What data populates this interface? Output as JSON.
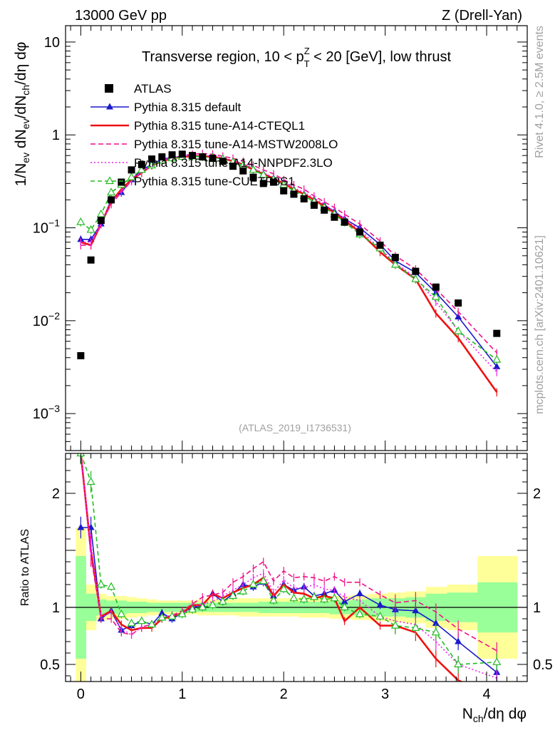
{
  "header": {
    "left": "13000 GeV pp",
    "right": "Z (Drell-Yan)",
    "side_top": "Rivet 4.1.0, ≥ 2.5M events",
    "side_bottom": "mcplots.cern.ch [arXiv:2401.10621]",
    "analysis_id": "(ATLAS_2019_I1736531)"
  },
  "colors": {
    "atlas": "#000000",
    "default": "#1a1acc",
    "cteql1": "#ee1111",
    "mstw": "#ee1188",
    "nnpdf": "#ee22ee",
    "cuetp": "#22bb22",
    "band_yellow": "#ffff99",
    "band_green": "#99ff99"
  },
  "chart_data": [
    {
      "type": "scatter",
      "scale": "log",
      "title": "Transverse region, 10 < p_T^Z < 20 [GeV], low thrust",
      "title_parts": {
        "pre": "Transverse region, 10 < p",
        "sup": "Z",
        "sub": "T",
        "post": " < 20 [GeV], low thrust"
      },
      "ylabel": "1/N_ev dN_ev/dN_ch/dη dφ",
      "ylabel_parts": [
        "1/N",
        "ev",
        " dN",
        "ev",
        "/dN",
        "ch",
        "/dη dφ"
      ],
      "xlim": [
        -0.15,
        4.4
      ],
      "ylim": [
        0.0004,
        15
      ],
      "ytick_labels": [
        {
          "v": 0.001,
          "b": "10",
          "e": "−3"
        },
        {
          "v": 0.01,
          "b": "10",
          "e": "−2"
        },
        {
          "v": 0.1,
          "b": "10",
          "e": "−1"
        },
        {
          "v": 1,
          "b": "1",
          "e": ""
        },
        {
          "v": 10,
          "b": "10",
          "e": ""
        }
      ],
      "legend": [
        {
          "key": "atlas",
          "label": "ATLAS"
        },
        {
          "key": "default",
          "label": "Pythia 8.315 default"
        },
        {
          "key": "cteql1",
          "label": "Pythia 8.315 tune-A14-CTEQL1"
        },
        {
          "key": "mstw",
          "label": "Pythia 8.315 tune-A14-MSTW2008LO"
        },
        {
          "key": "nnpdf",
          "label": "Pythia 8.315 tune-A14-NNPDF2.3LO"
        },
        {
          "key": "cuetp",
          "label": "Pythia 8.315 tune-CUETP8S1"
        }
      ],
      "x": [
        0.0,
        0.1,
        0.2,
        0.3,
        0.4,
        0.5,
        0.6,
        0.7,
        0.8,
        0.9,
        1.0,
        1.1,
        1.2,
        1.3,
        1.4,
        1.5,
        1.6,
        1.7,
        1.8,
        1.9,
        2.0,
        2.1,
        2.2,
        2.3,
        2.4,
        2.5,
        2.6,
        2.75,
        2.95,
        3.1,
        3.3,
        3.5,
        3.72,
        4.1
      ],
      "data": [
        0.0042,
        0.045,
        0.12,
        0.2,
        0.31,
        0.42,
        0.48,
        0.55,
        0.58,
        0.61,
        0.62,
        0.6,
        0.58,
        0.56,
        0.52,
        0.46,
        0.41,
        0.35,
        0.3,
        0.31,
        0.25,
        0.23,
        0.205,
        0.175,
        0.155,
        0.13,
        0.115,
        0.09,
        0.065,
        0.048,
        0.034,
        0.023,
        0.0155,
        0.0073
      ],
      "series": [
        {
          "key": "default",
          "name": "Pythia 8.315 default",
          "dash": "",
          "marker": "tri",
          "values": [
            0.075,
            0.075,
            0.11,
            0.2,
            0.24,
            0.33,
            0.42,
            0.48,
            0.55,
            0.57,
            0.59,
            0.6,
            0.59,
            0.58,
            0.56,
            0.52,
            0.48,
            0.43,
            0.38,
            0.34,
            0.3,
            0.26,
            0.23,
            0.2,
            0.175,
            0.15,
            0.125,
            0.1,
            0.066,
            0.044,
            0.033,
            0.02,
            0.011,
            0.0032
          ]
        },
        {
          "key": "cteql1",
          "name": "Pythia 8.315 tune-A14-CTEQL1",
          "dash": "",
          "marker": "none",
          "values": [
            0.07,
            0.065,
            0.11,
            0.19,
            0.26,
            0.33,
            0.39,
            0.47,
            0.52,
            0.56,
            0.58,
            0.59,
            0.59,
            0.58,
            0.56,
            0.52,
            0.48,
            0.42,
            0.38,
            0.34,
            0.3,
            0.26,
            0.23,
            0.2,
            0.17,
            0.145,
            0.12,
            0.09,
            0.055,
            0.04,
            0.028,
            0.012,
            0.0065,
            0.0017
          ]
        },
        {
          "key": "mstw",
          "name": "Pythia 8.315 tune-A14-MSTW2008LO",
          "dash": "7,4",
          "marker": "none",
          "values": [
            0.065,
            0.065,
            0.11,
            0.18,
            0.24,
            0.32,
            0.4,
            0.47,
            0.53,
            0.57,
            0.6,
            0.62,
            0.63,
            0.62,
            0.59,
            0.56,
            0.52,
            0.47,
            0.42,
            0.38,
            0.33,
            0.29,
            0.26,
            0.22,
            0.19,
            0.165,
            0.14,
            0.11,
            0.072,
            0.05,
            0.036,
            0.022,
            0.0125,
            0.0045
          ]
        },
        {
          "key": "nnpdf",
          "name": "Pythia 8.315 tune-A14-NNPDF2.3LO",
          "dash": "2,3",
          "marker": "none",
          "values": [
            0.07,
            0.07,
            0.11,
            0.19,
            0.25,
            0.32,
            0.4,
            0.47,
            0.53,
            0.57,
            0.59,
            0.6,
            0.6,
            0.59,
            0.57,
            0.53,
            0.49,
            0.44,
            0.39,
            0.35,
            0.31,
            0.27,
            0.24,
            0.21,
            0.18,
            0.15,
            0.125,
            0.095,
            0.06,
            0.042,
            0.029,
            0.016,
            0.0078,
            0.0028
          ]
        },
        {
          "key": "cuetp",
          "name": "Pythia 8.315 tune-CUETP8S1",
          "dash": "6,4",
          "marker": "otri",
          "values": [
            0.115,
            0.095,
            0.14,
            0.24,
            0.29,
            0.35,
            0.42,
            0.47,
            0.53,
            0.56,
            0.58,
            0.59,
            0.58,
            0.57,
            0.55,
            0.51,
            0.47,
            0.42,
            0.37,
            0.33,
            0.29,
            0.25,
            0.22,
            0.19,
            0.165,
            0.14,
            0.115,
            0.085,
            0.06,
            0.04,
            0.028,
            0.018,
            0.0077,
            0.0038
          ]
        }
      ]
    },
    {
      "type": "line",
      "title": "",
      "ylabel": "Ratio to ATLAS",
      "xlabel": "N_ch/dη dφ",
      "xlabel_parts": [
        "N",
        "ch",
        "/dη dφ"
      ],
      "xlim": [
        -0.15,
        4.4
      ],
      "ylim": [
        0.35,
        2.35
      ],
      "xtick_labels": [
        {
          "v": 0,
          "t": "0"
        },
        {
          "v": 1,
          "t": "1"
        },
        {
          "v": 2,
          "t": "2"
        },
        {
          "v": 3,
          "t": "3"
        },
        {
          "v": 4,
          "t": "4"
        }
      ],
      "ytick_labels": [
        {
          "v": 0.5,
          "t": "0.5"
        },
        {
          "v": 1,
          "t": "1"
        },
        {
          "v": 2,
          "t": "2"
        }
      ],
      "x": [
        0.0,
        0.1,
        0.2,
        0.3,
        0.4,
        0.5,
        0.6,
        0.7,
        0.8,
        0.9,
        1.0,
        1.1,
        1.2,
        1.3,
        1.4,
        1.5,
        1.6,
        1.7,
        1.8,
        1.9,
        2.0,
        2.1,
        2.2,
        2.3,
        2.4,
        2.5,
        2.6,
        2.75,
        2.95,
        3.1,
        3.3,
        3.5,
        3.72,
        4.1
      ],
      "band_yellow": [
        0.7,
        0.2,
        0.12,
        0.1,
        0.1,
        0.09,
        0.08,
        0.07,
        0.06,
        0.06,
        0.06,
        0.06,
        0.07,
        0.07,
        0.07,
        0.07,
        0.08,
        0.08,
        0.08,
        0.08,
        0.08,
        0.08,
        0.09,
        0.09,
        0.09,
        0.1,
        0.1,
        0.11,
        0.12,
        0.13,
        0.14,
        0.18,
        0.2,
        0.45
      ],
      "band_green": [
        0.45,
        0.12,
        0.07,
        0.06,
        0.06,
        0.05,
        0.05,
        0.04,
        0.04,
        0.04,
        0.04,
        0.04,
        0.04,
        0.04,
        0.04,
        0.04,
        0.04,
        0.04,
        0.05,
        0.05,
        0.05,
        0.05,
        0.05,
        0.05,
        0.05,
        0.06,
        0.06,
        0.07,
        0.08,
        0.08,
        0.09,
        0.12,
        0.13,
        0.22
      ],
      "series": [
        {
          "key": "default",
          "dash": "",
          "marker": "tri",
          "values": [
            1.7,
            1.7,
            0.9,
            0.97,
            0.8,
            0.84,
            0.88,
            0.85,
            0.95,
            0.9,
            0.95,
            1.0,
            1.02,
            1.12,
            1.05,
            1.12,
            1.2,
            1.18,
            1.22,
            1.1,
            1.2,
            1.15,
            1.18,
            1.1,
            1.12,
            1.15,
            1.05,
            1.12,
            1.02,
            0.98,
            0.97,
            0.86,
            0.7,
            0.43
          ]
        },
        {
          "key": "cteql1",
          "dash": "",
          "marker": "none",
          "values": [
            2.35,
            1.5,
            0.92,
            0.97,
            0.85,
            0.8,
            0.82,
            0.82,
            0.9,
            0.92,
            0.95,
            1.02,
            1.02,
            1.12,
            1.08,
            1.13,
            1.17,
            1.2,
            1.26,
            1.1,
            1.2,
            1.13,
            1.12,
            1.08,
            1.1,
            1.08,
            0.88,
            1.0,
            0.84,
            0.84,
            0.78,
            0.55,
            0.36,
            0.22
          ]
        },
        {
          "key": "mstw",
          "dash": "7,4",
          "marker": "none",
          "values": [
            2.35,
            1.45,
            0.9,
            0.9,
            0.78,
            0.76,
            0.83,
            0.85,
            0.91,
            0.93,
            0.97,
            1.03,
            1.09,
            1.11,
            1.13,
            1.22,
            1.27,
            1.34,
            1.4,
            1.23,
            1.32,
            1.26,
            1.27,
            1.26,
            1.23,
            1.27,
            1.22,
            1.22,
            1.11,
            1.04,
            1.06,
            0.96,
            0.81,
            0.62
          ]
        },
        {
          "key": "nnpdf",
          "dash": "2,3",
          "marker": "none",
          "values": [
            2.35,
            1.55,
            0.92,
            0.95,
            0.81,
            0.76,
            0.83,
            0.85,
            0.91,
            0.93,
            0.95,
            1.0,
            1.03,
            1.05,
            1.1,
            1.15,
            1.2,
            1.26,
            1.3,
            1.13,
            1.24,
            1.17,
            1.17,
            1.2,
            1.16,
            1.15,
            1.09,
            1.06,
            0.92,
            0.88,
            0.85,
            0.7,
            0.5,
            0.38
          ]
        },
        {
          "key": "cuetp",
          "dash": "6,4",
          "marker": "otri",
          "values": [
            2.35,
            2.1,
            1.2,
            1.18,
            0.94,
            0.86,
            0.88,
            0.85,
            0.91,
            0.92,
            0.94,
            0.98,
            1.0,
            1.02,
            1.05,
            1.1,
            1.14,
            1.2,
            1.23,
            1.06,
            1.16,
            1.08,
            1.07,
            1.09,
            1.07,
            1.08,
            1.0,
            0.94,
            0.92,
            0.84,
            0.82,
            0.78,
            0.5,
            0.52
          ]
        }
      ]
    }
  ]
}
